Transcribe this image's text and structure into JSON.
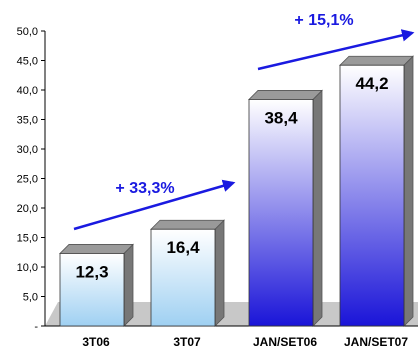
{
  "chart_data": {
    "type": "bar",
    "categories": [
      "3T06",
      "3T07",
      "JAN/SET06",
      "JAN/SET07"
    ],
    "values": [
      12.3,
      16.4,
      38.4,
      44.2
    ],
    "value_labels": [
      "12,3",
      "16,4",
      "38,4",
      "44,2"
    ],
    "y_ticks": [
      "-",
      "5,0",
      "10,0",
      "15,0",
      "20,0",
      "25,0",
      "30,0",
      "35,0",
      "40,0",
      "45,0",
      "50,0"
    ],
    "ylim": [
      0,
      50
    ],
    "title": "",
    "xlabel": "",
    "ylabel": "",
    "grid": false,
    "annotations": [
      {
        "text": "+ 33,3%",
        "from": "3T06",
        "to": "3T07"
      },
      {
        "text": "+ 15,1%",
        "from": "JAN/SET06",
        "to": "JAN/SET07"
      }
    ],
    "colors": {
      "arrow": "#1a1ae0",
      "annotation_text": "#1a1ae0",
      "floor": "#c8c8c8",
      "bar_light_top": "#ffffff",
      "bar_light_bottom": "#9fd0f2",
      "bar_dark_top": "#ffffff",
      "bar_dark_bottom": "#1a14d8",
      "bar_cap": "#9a9a9a"
    }
  }
}
